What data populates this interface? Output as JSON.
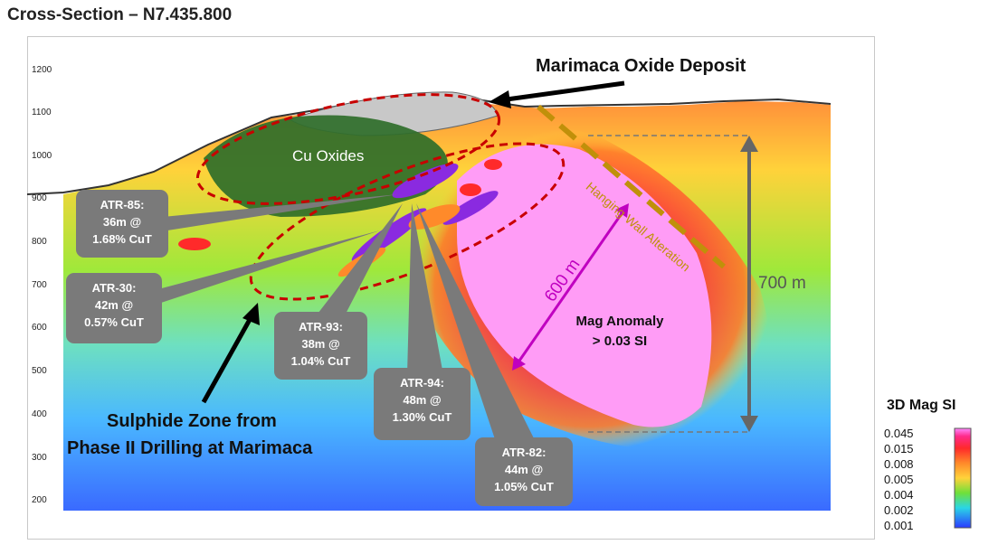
{
  "title": "Cross-Section – N7.435.800",
  "elevation_ticks": [
    "1200",
    "1100",
    "1000",
    "900",
    "800",
    "700",
    "600",
    "500",
    "400",
    "300",
    "200"
  ],
  "labels": {
    "deposit": "Marimaca Oxide Deposit",
    "cu_oxides": "Cu Oxides",
    "hanging_wall": "Hanging Wall Alteration",
    "sulphide_line1": "Sulphide Zone from",
    "sulphide_line2": "Phase II Drilling at Marimaca",
    "mag_line1": "Mag Anomaly",
    "mag_line2": "> 0.03 SI",
    "dim_600": "600 m",
    "dim_700": "700 m"
  },
  "drillholes": [
    {
      "name": "ATR-85:",
      "interval": "36m @",
      "grade": "1.68% CuT"
    },
    {
      "name": "ATR-30:",
      "interval": "42m @",
      "grade": "0.57% CuT"
    },
    {
      "name": "ATR-93:",
      "interval": "38m @",
      "grade": "1.04% CuT"
    },
    {
      "name": "ATR-94:",
      "interval": "48m @",
      "grade": "1.30% CuT"
    },
    {
      "name": "ATR-82:",
      "interval": "44m @",
      "grade": "1.05% CuT"
    }
  ],
  "legend": {
    "title": "3D Mag SI",
    "values": [
      "0.045",
      "0.015",
      "0.008",
      "0.005",
      "0.004",
      "0.002",
      "0.001"
    ],
    "colors": [
      "#ff88ff",
      "#ff2a5a",
      "#ff8a2a",
      "#ffd23a",
      "#6ee03a",
      "#2ad6e6",
      "#2a5aff"
    ]
  },
  "colors": {
    "dim_arrow": "#c000c0",
    "alteration": "#c0900a",
    "callout_bg": "#7a7a7a",
    "ellipse": "#c80000"
  }
}
